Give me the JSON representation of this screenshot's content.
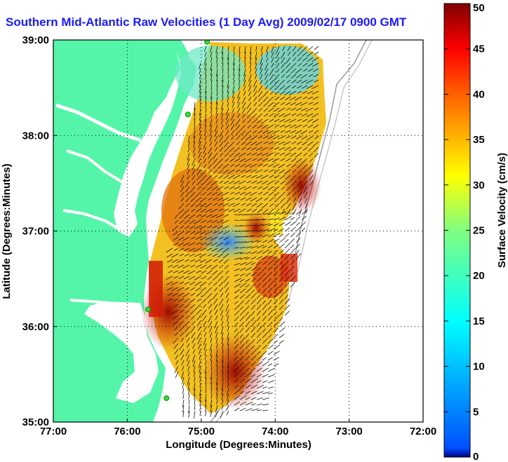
{
  "title": "Southern Mid-Atlantic Raw Velocities (1 Day Avg) 2009/02/17 0900 GMT",
  "chart_data": {
    "type": "heatmap",
    "subtype": "geographic velocity vector map",
    "xlabel": "Longitude (Degrees:Minutes)",
    "ylabel": "Latitude (Degrees:Minutes)",
    "x_ticks": [
      "77:00",
      "76:00",
      "75:00",
      "74:00",
      "73:00",
      "72:00"
    ],
    "y_ticks": [
      "39:00",
      "38:00",
      "37:00",
      "36:00",
      "35:00"
    ],
    "xlim": [
      -77,
      -72
    ],
    "ylim": [
      35,
      39
    ],
    "grid": true,
    "colorbar": {
      "label": "Surface Velocity (cm/s)",
      "ticks": [
        0,
        5,
        10,
        15,
        20,
        25,
        30,
        35,
        40,
        45,
        50
      ],
      "range": [
        0,
        50
      ],
      "colormap": "jet"
    },
    "colors": {
      "land": "#55f5a9",
      "water": "#ffffff",
      "title": "#1a1aff",
      "station": "#33dd33"
    },
    "stations": [
      {
        "lon": -74.92,
        "lat": 38.98
      },
      {
        "lon": -75.18,
        "lat": 38.22
      },
      {
        "lon": -75.72,
        "lat": 36.18
      },
      {
        "lon": -75.47,
        "lat": 35.25
      }
    ]
  }
}
